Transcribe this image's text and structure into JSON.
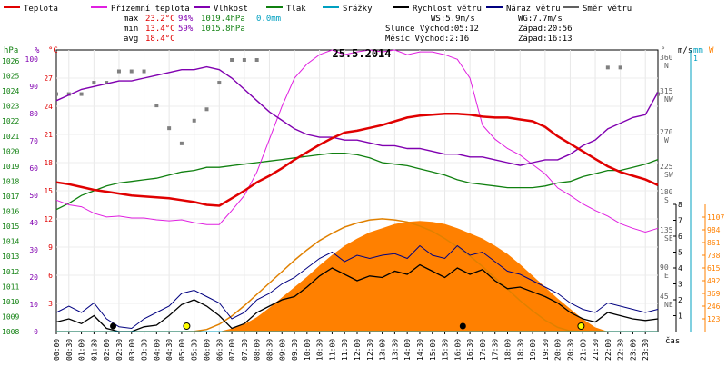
{
  "legend": [
    {
      "key": "teplota",
      "label": "Teplota",
      "color": "#e00000"
    },
    {
      "key": "prizemni",
      "label": "Přízemní teplota",
      "color": "#e020e0"
    },
    {
      "key": "vlhkost",
      "label": "Vlhkost",
      "color": "#8000b0"
    },
    {
      "key": "tlak",
      "label": "Tlak",
      "color": "#108010"
    },
    {
      "key": "srazky",
      "label": "Srážky",
      "color": "#00a0c0"
    },
    {
      "key": "rychlost",
      "label": "Rychlost větru",
      "color": "#000000"
    },
    {
      "key": "naraz",
      "label": "Náraz větru",
      "color": "#000080"
    },
    {
      "key": "smer",
      "label": "Směr větru",
      "color": "#606060"
    }
  ],
  "stats": {
    "max_label": "max",
    "max_temp": "23.2°C",
    "max_hum": "94%",
    "max_press": "1019.4hPa",
    "max_rain": "0.0mm",
    "min_label": "min",
    "min_temp": "13.4°C",
    "min_hum": "59%",
    "min_press": "1015.8hPa",
    "avg_label": "avg",
    "avg_temp": "18.4°C",
    "ws": "WS:5.9m/s",
    "wg": "WG:7.7m/s",
    "sun_rise": "Slunce Východ:05:12",
    "sun_set": "Západ:20:56",
    "moon_rise": "Měsíc  Východ:2:16",
    "moon_set": "Západ:16:13"
  },
  "date_title": "25.5.2014",
  "axis_units": {
    "hpa": "hPa",
    "pct": "%",
    "degc": "°C",
    "deg": "°",
    "ms": "m/s",
    "mm": "mm",
    "w": "W",
    "cas": "čas"
  },
  "colors": {
    "temp": "#e00000",
    "ground": "#e020e0",
    "hum": "#8000b0",
    "press": "#108010",
    "rain": "#00a0c0",
    "wind": "#000000",
    "gust": "#000080",
    "dir": "#808080",
    "solar_fill": "#ff8000",
    "solar_line": "#e08000"
  },
  "chart_data": {
    "type": "line",
    "title": "25.5.2014",
    "x": [
      "00:00",
      "00:30",
      "01:00",
      "01:30",
      "02:00",
      "02:30",
      "03:00",
      "03:30",
      "04:00",
      "04:30",
      "05:00",
      "05:30",
      "06:00",
      "06:30",
      "07:00",
      "07:30",
      "08:00",
      "08:30",
      "09:00",
      "09:30",
      "10:00",
      "10:30",
      "11:00",
      "11:30",
      "12:00",
      "12:30",
      "13:00",
      "13:30",
      "14:00",
      "14:30",
      "15:00",
      "15:30",
      "16:00",
      "16:30",
      "17:00",
      "17:30",
      "18:00",
      "18:30",
      "19:00",
      "19:30",
      "20:00",
      "20:30",
      "21:00",
      "21:30",
      "22:00",
      "22:30",
      "23:00",
      "23:30",
      "24:00"
    ],
    "x_tick_labels": [
      "00:00",
      "00:30",
      "01:00",
      "01:30",
      "02:00",
      "02:30",
      "03:00",
      "03:30",
      "04:00",
      "04:30",
      "05:00",
      "05:30",
      "06:00",
      "06:30",
      "07:00",
      "07:30",
      "08:00",
      "08:30",
      "09:00",
      "09:30",
      "10:00",
      "10:30",
      "11:00",
      "11:30",
      "12:00",
      "12:30",
      "13:00",
      "13:30",
      "14:00",
      "14:30",
      "15:00",
      "15:30",
      "16:00",
      "16:30",
      "17:00",
      "17:30",
      "18:00",
      "18:30",
      "19:00",
      "19:30",
      "20:00",
      "20:30",
      "21:00",
      "21:30",
      "22:00",
      "22:30",
      "23:00",
      "23:30"
    ],
    "axes": {
      "pressure_hpa": {
        "min": 1008,
        "max": 1026,
        "ticks": [
          "1026",
          "1025",
          "1024",
          "1023",
          "1022",
          "1021",
          "1020",
          "1019",
          "1018",
          "1017",
          "1016",
          "1015",
          "1014",
          "1013",
          "1012",
          "1011",
          "1010",
          "1009",
          "1008"
        ]
      },
      "humidity_pct": {
        "min": 0,
        "max": 100,
        "ticks": [
          "100",
          "90",
          "80",
          "70",
          "60",
          "50",
          "40",
          "30",
          "20",
          "10",
          "0"
        ]
      },
      "temperature_c": {
        "min": 0,
        "max": 30,
        "ticks": [
          "27",
          "24",
          "21",
          "18",
          "15",
          "12",
          "9",
          "6",
          "3"
        ]
      },
      "direction_deg": {
        "ticks": [
          "360",
          "315",
          "270",
          "225",
          "180",
          "135",
          "90",
          "45"
        ],
        "compass": [
          "N",
          "NW",
          "W",
          "SW",
          "S",
          "SE",
          "E",
          "NE"
        ]
      },
      "wind_ms": {
        "min": 0,
        "max": 8,
        "ticks": [
          "8",
          "7",
          "6",
          "5",
          "4",
          "3",
          "2",
          "1"
        ]
      },
      "rain_mm": {
        "ticks": [
          "1"
        ]
      },
      "solar_w": {
        "min": 0,
        "max": 1230,
        "ticks": [
          "1107",
          "984",
          "861",
          "738",
          "615",
          "492",
          "369",
          "246",
          "123"
        ]
      }
    },
    "series": [
      {
        "name": "Teplota",
        "unit": "°C",
        "values": [
          15.9,
          15.7,
          15.4,
          15.1,
          14.9,
          14.7,
          14.5,
          14.4,
          14.3,
          14.2,
          14.0,
          13.8,
          13.5,
          13.4,
          14.2,
          15.0,
          15.9,
          16.6,
          17.4,
          18.3,
          19.1,
          19.9,
          20.6,
          21.2,
          21.4,
          21.7,
          22.0,
          22.4,
          22.8,
          23.0,
          23.1,
          23.2,
          23.2,
          23.1,
          22.9,
          22.8,
          22.8,
          22.6,
          22.4,
          21.8,
          20.8,
          20.0,
          19.2,
          18.4,
          17.6,
          17.0,
          16.6,
          16.2,
          15.6
        ]
      },
      {
        "name": "Přízemní teplota",
        "unit": "°C",
        "values": [
          14.0,
          13.5,
          13.3,
          12.6,
          12.2,
          12.3,
          12.1,
          12.1,
          11.9,
          11.8,
          11.9,
          11.6,
          11.4,
          11.4,
          12.9,
          14.5,
          17.0,
          20.5,
          24.0,
          27.0,
          28.5,
          29.5,
          30.0,
          29.5,
          29.8,
          30.0,
          29.8,
          30.0,
          29.5,
          29.8,
          29.8,
          29.5,
          29.0,
          27.0,
          22.0,
          20.5,
          19.5,
          18.8,
          17.8,
          16.8,
          15.3,
          14.5,
          13.6,
          12.9,
          12.3,
          11.5,
          11.0,
          10.6,
          11.0
        ]
      },
      {
        "name": "Vlhkost",
        "unit": "%",
        "values": [
          82,
          84,
          86,
          87,
          88,
          89,
          89,
          90,
          91,
          92,
          93,
          93,
          94,
          93,
          90,
          86,
          82,
          78,
          75,
          72,
          70,
          69,
          69,
          68,
          68,
          67,
          66,
          66,
          65,
          65,
          64,
          63,
          63,
          62,
          62,
          61,
          60,
          59,
          60,
          61,
          61,
          63,
          66,
          68,
          72,
          74,
          76,
          77,
          85
        ]
      },
      {
        "name": "Tlak",
        "unit": "hPa",
        "values": [
          1015.8,
          1016.2,
          1016.7,
          1017.0,
          1017.3,
          1017.5,
          1017.6,
          1017.7,
          1017.8,
          1018.0,
          1018.2,
          1018.3,
          1018.5,
          1018.5,
          1018.6,
          1018.7,
          1018.8,
          1018.9,
          1019.0,
          1019.1,
          1019.2,
          1019.3,
          1019.4,
          1019.4,
          1019.3,
          1019.1,
          1018.8,
          1018.7,
          1018.6,
          1018.4,
          1018.2,
          1018.0,
          1017.7,
          1017.5,
          1017.4,
          1017.3,
          1017.2,
          1017.2,
          1017.2,
          1017.3,
          1017.5,
          1017.6,
          1017.9,
          1018.1,
          1018.3,
          1018.3,
          1018.5,
          1018.7,
          1019.0
        ]
      },
      {
        "name": "Rychlost větru",
        "unit": "m/s",
        "values": [
          0.6,
          0.8,
          0.5,
          1.0,
          0.2,
          0.0,
          0.0,
          0.3,
          0.4,
          1.0,
          1.7,
          2.0,
          1.6,
          1.0,
          0.2,
          0.5,
          1.2,
          1.6,
          2.0,
          2.2,
          2.8,
          3.5,
          4.0,
          3.6,
          3.2,
          3.5,
          3.4,
          3.8,
          3.6,
          4.2,
          3.8,
          3.4,
          4.0,
          3.6,
          3.9,
          3.2,
          2.7,
          2.8,
          2.5,
          2.2,
          1.8,
          1.2,
          0.8,
          0.6,
          1.2,
          1.0,
          0.8,
          0.7,
          0.8
        ]
      },
      {
        "name": "Náraz větru",
        "unit": "m/s",
        "values": [
          1.2,
          1.6,
          1.2,
          1.8,
          0.8,
          0.3,
          0.2,
          0.8,
          1.2,
          1.6,
          2.4,
          2.6,
          2.2,
          1.8,
          0.8,
          1.2,
          2.0,
          2.4,
          3.0,
          3.4,
          4.0,
          4.6,
          5.0,
          4.4,
          4.8,
          4.6,
          4.8,
          4.9,
          4.6,
          5.4,
          4.8,
          4.6,
          5.4,
          4.8,
          5.0,
          4.4,
          3.8,
          3.6,
          3.2,
          2.8,
          2.4,
          1.8,
          1.4,
          1.2,
          1.8,
          1.6,
          1.4,
          1.2,
          1.4
        ]
      },
      {
        "name": "Solar",
        "unit": "W",
        "values": [
          0,
          0,
          0,
          0,
          0,
          0,
          0,
          0,
          0,
          0,
          0,
          0,
          0,
          0,
          30,
          70,
          140,
          230,
          330,
          430,
          530,
          640,
          740,
          830,
          900,
          960,
          1000,
          1040,
          1060,
          1070,
          1060,
          1040,
          1000,
          950,
          900,
          830,
          750,
          650,
          540,
          430,
          320,
          220,
          120,
          40,
          0,
          0,
          0,
          0,
          0
        ]
      },
      {
        "name": "Solar max",
        "unit": "W",
        "values": [
          0,
          0,
          0,
          0,
          0,
          0,
          0,
          0,
          0,
          0,
          0,
          2,
          20,
          70,
          150,
          250,
          360,
          470,
          580,
          690,
          790,
          880,
          950,
          1010,
          1050,
          1080,
          1090,
          1080,
          1060,
          1020,
          970,
          900,
          820,
          730,
          630,
          520,
          410,
          300,
          200,
          110,
          40,
          5,
          0,
          0,
          0,
          0,
          0,
          0,
          0
        ]
      },
      {
        "name": "Směr větru",
        "unit": "°",
        "values": [
          315,
          315,
          315,
          330,
          330,
          345,
          345,
          345,
          300,
          270,
          250,
          280,
          295,
          330,
          360,
          360,
          360,
          null,
          null,
          null,
          null,
          null,
          null,
          null,
          null,
          null,
          null,
          null,
          null,
          null,
          null,
          null,
          null,
          null,
          null,
          null,
          null,
          null,
          null,
          null,
          null,
          null,
          null,
          null,
          350,
          350,
          null,
          null,
          315
        ]
      }
    ],
    "markers": {
      "moon_rise": "02:16",
      "sun_rise": "05:12",
      "moon_set": "16:13",
      "sun_set": "20:56"
    }
  }
}
